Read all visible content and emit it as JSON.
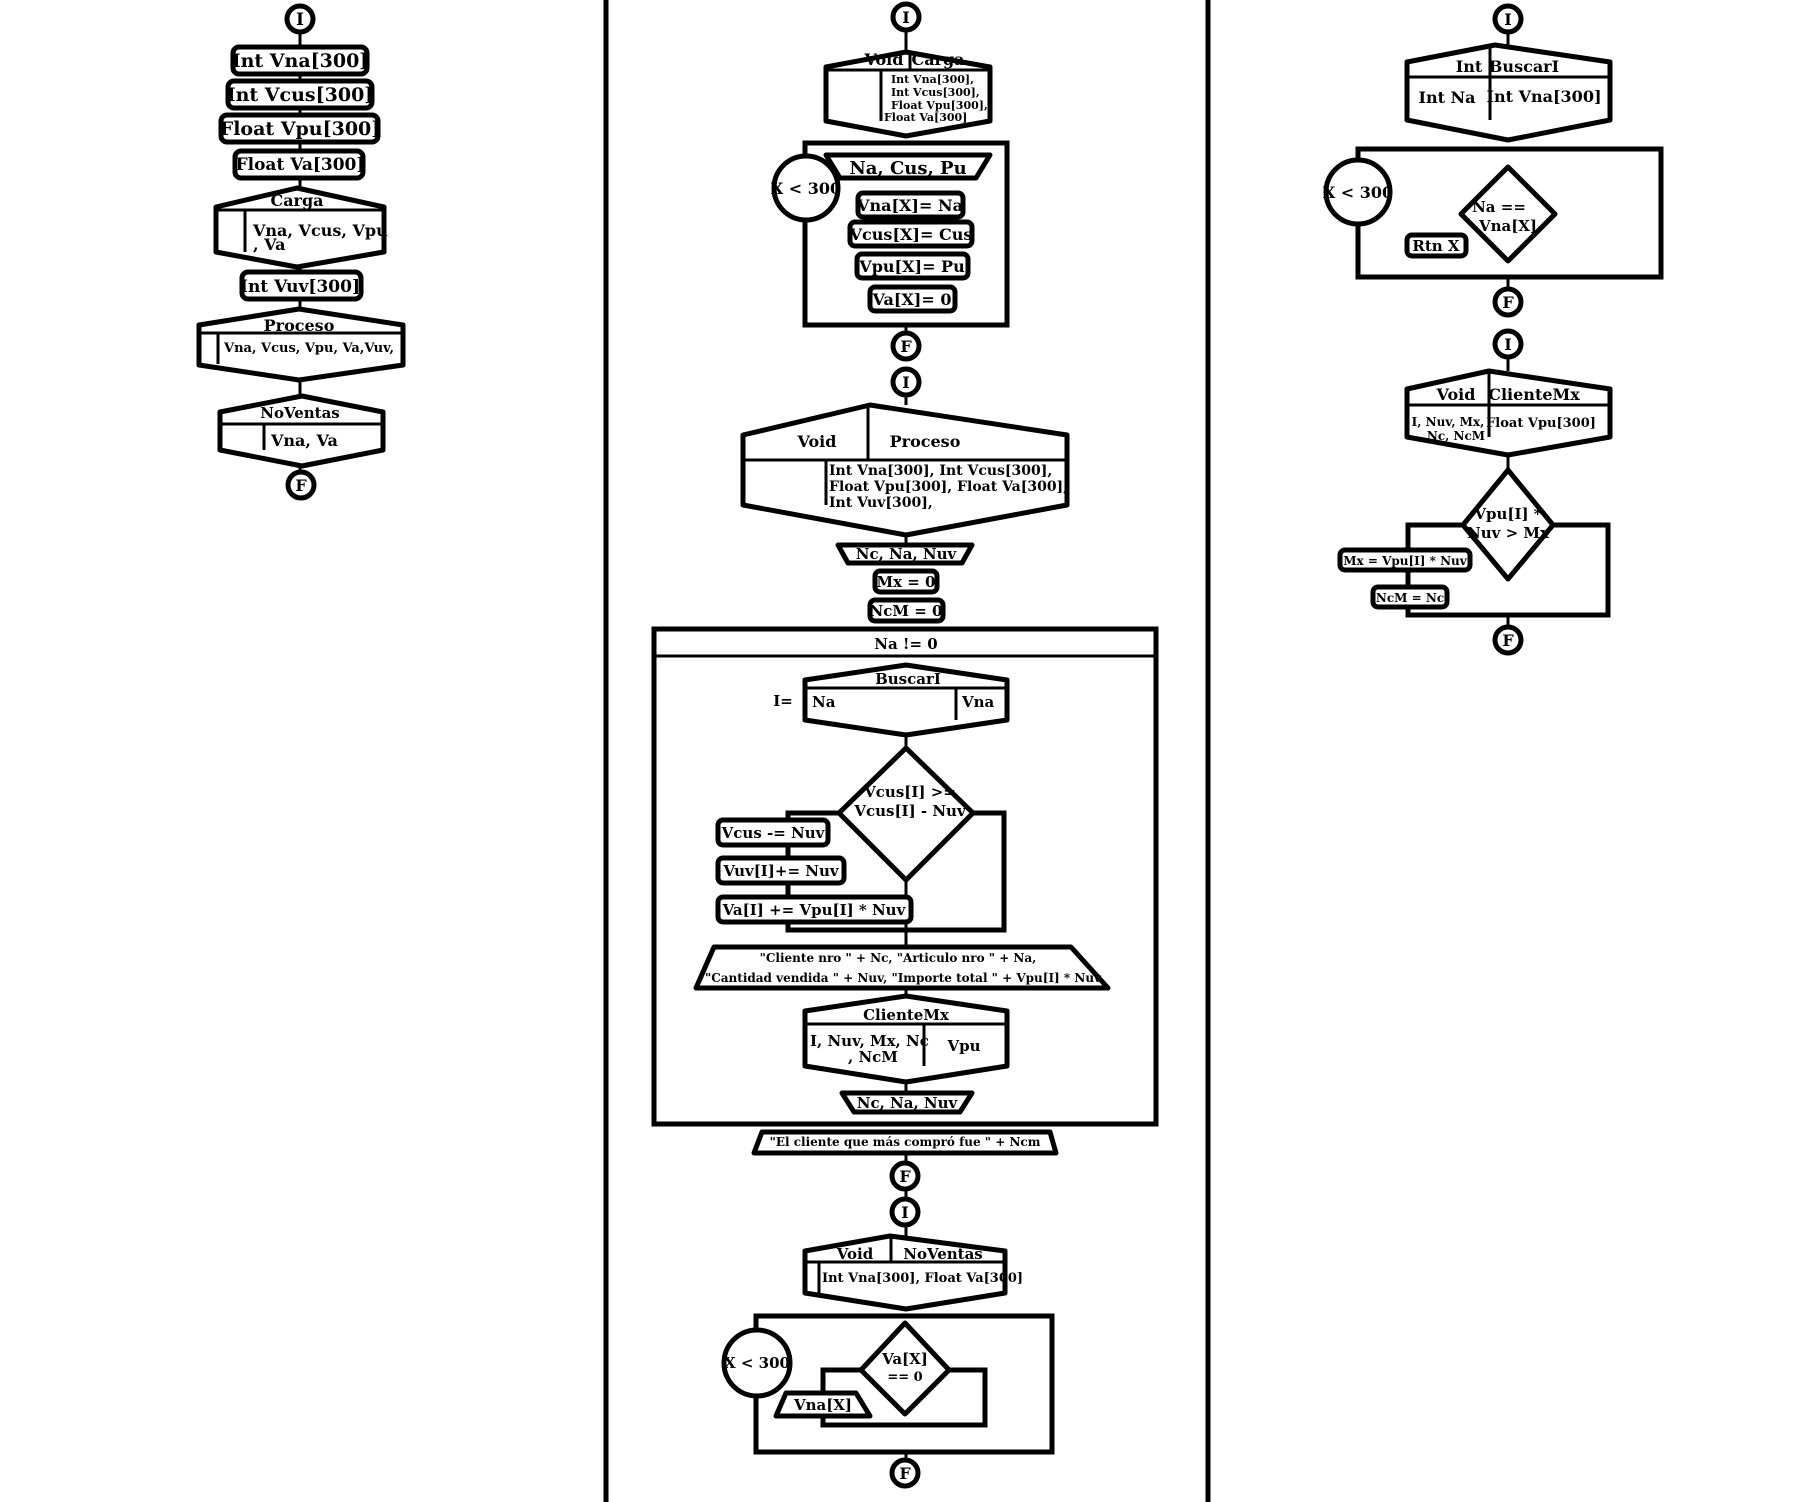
{
  "column_left": {
    "start": "I",
    "decl_vna": "Int Vna[300]",
    "decl_vcus": "Int Vcus[300]",
    "decl_vpu": "Float Vpu[300]",
    "decl_va": "Float Va[300]",
    "call_carga": {
      "name": "Carga",
      "args_line1": "Vna, Vcus, Vpu",
      "args_line2": ", Va"
    },
    "decl_vuv": "Int Vuv[300]",
    "call_proceso": {
      "name": "Proceso",
      "args": "Vna, Vcus, Vpu, Va,Vuv,"
    },
    "call_noventas": {
      "name": "NoVentas",
      "args": "Vna, Va"
    },
    "end": "F"
  },
  "column_middle": {
    "carga": {
      "start": "I",
      "type": "Void",
      "name": "Carga",
      "params": [
        "Int Vna[300],",
        "Int Vcus[300],",
        "Float Vpu[300],",
        "Float Va[300]"
      ],
      "loop": "X < 300",
      "read": "Na, Cus, Pu",
      "assign_na": "Vna[X]= Na",
      "assign_cus": "Vcus[X]= Cus",
      "assign_pu": "Vpu[X]= Pu",
      "assign_va": "Va[X]= 0",
      "end": "F"
    },
    "proceso": {
      "start": "I",
      "type": "Void",
      "name": "Proceso",
      "params": [
        "Int Vna[300], Int Vcus[300],",
        "Float Vpu[300], Float Va[300],",
        "Int Vuv[300],"
      ],
      "read1": "Nc, Na, Nuv",
      "init_mx": "Mx = 0",
      "init_ncm": "NcM = 0",
      "while_cond": "Na != 0",
      "buscar_assign": "I=",
      "buscar_name": "BuscarI",
      "buscar_arg1": "Na",
      "buscar_arg2": "Vna",
      "decision": [
        "Vcus[I] >=",
        "Vcus[I] - Nuv"
      ],
      "op1": "Vcus -= Nuv",
      "op2": "Vuv[I]+= Nuv",
      "op3": "Va[I] += Vpu[I] * Nuv",
      "print_line1": "\"Cliente nro \" + Nc, \"Articulo nro \" + Na,",
      "print_line2": "\"Cantidad vendida \" + Nuv, \"Importe total \" + Vpu[I] * Nuv",
      "clientemx_name": "ClienteMx",
      "clientemx_args1_line1": "I, Nuv, Mx, Nc",
      "clientemx_args1_line2": ", NcM",
      "clientemx_args2": "Vpu",
      "read2": "Nc, Na, Nuv",
      "print_final": "\"El cliente que más compró fue \" + Ncm",
      "end": "F"
    },
    "noventas": {
      "start": "I",
      "type": "Void",
      "name": "NoVentas",
      "params": "Int Vna[300], Float Va[300]",
      "loop": "X < 300",
      "decision": [
        "Va[X]",
        "== 0"
      ],
      "output": "Vna[X]",
      "end": "F"
    }
  },
  "column_right": {
    "buscar": {
      "start": "I",
      "type": "Int",
      "name": "BuscarI",
      "param1": "Int Na",
      "param2": "Int Vna[300]",
      "loop": "X < 300",
      "decision": [
        "Na ==",
        "Vna[X]"
      ],
      "return": "Rtn X",
      "end": "F"
    },
    "clientemx": {
      "start": "I",
      "type": "Void",
      "name": "ClienteMx",
      "params1": [
        "I, Nuv, Mx,",
        "Nc, NcM"
      ],
      "params2": "Float Vpu[300]",
      "decision": [
        "Vpu[I] *",
        "Nuv > Mx"
      ],
      "assign_mx": "Mx = Vpu[I] * Nuv",
      "assign_ncm": "NcM = Nc",
      "end": "F"
    }
  }
}
